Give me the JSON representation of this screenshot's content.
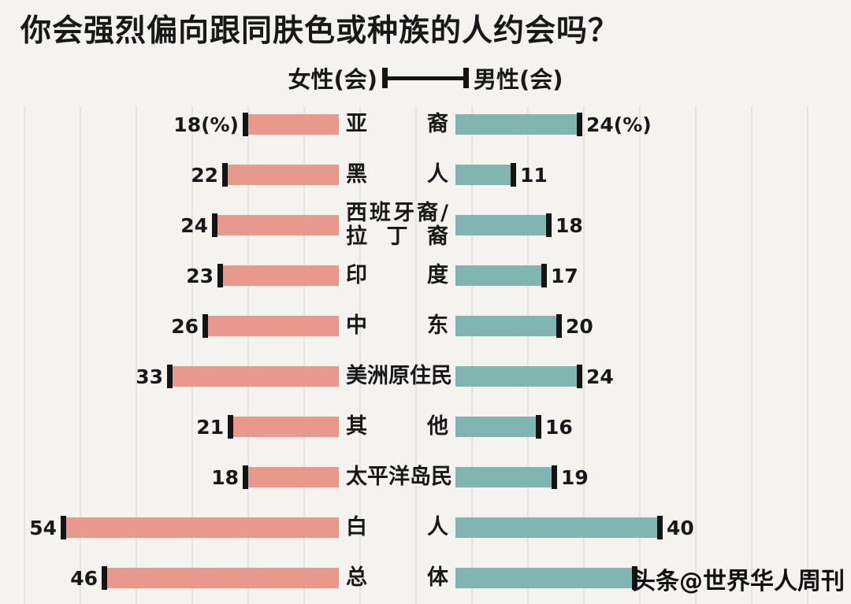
{
  "title": "你会强烈偏向跟同肤色或种族的人约会吗？",
  "legend": {
    "female": "女性(会)",
    "male": "男性(会)"
  },
  "watermark": "头条@世界华人周刊",
  "colors": {
    "female_bar": "#E8998C",
    "male_bar": "#80B5B2",
    "tick": "#141414",
    "background": "#F5F3F0",
    "gridline": "#E6E3DE"
  },
  "chart_data": {
    "type": "bar",
    "orientation": "diverging-horizontal",
    "title": "你会强烈偏向跟同肤色或种族的人约会吗？",
    "unit": "%",
    "xlim": [
      0,
      60
    ],
    "grid": true,
    "legend_position": "top-center",
    "categories": [
      "亚裔",
      "黑人",
      "西班牙裔/拉丁裔",
      "印度",
      "中东",
      "美洲原住民",
      "其他",
      "太平洋岛民",
      "白人",
      "总体"
    ],
    "series": [
      {
        "name": "女性(会)",
        "side": "left",
        "color": "#E8998C",
        "values": [
          18,
          22,
          24,
          23,
          26,
          33,
          21,
          18,
          54,
          46
        ]
      },
      {
        "name": "男性(会)",
        "side": "right",
        "color": "#80B5B2",
        "values": [
          24,
          11,
          18,
          17,
          20,
          24,
          16,
          19,
          40,
          35
        ]
      }
    ]
  },
  "rows": [
    {
      "category_lines": [
        "亚裔"
      ],
      "female": 18,
      "female_label": "18(%)",
      "male": 24,
      "male_label": "24(%)"
    },
    {
      "category_lines": [
        "黑人"
      ],
      "female": 22,
      "female_label": "22",
      "male": 11,
      "male_label": "11"
    },
    {
      "category_lines": [
        "西班牙裔/",
        "拉丁裔"
      ],
      "female": 24,
      "female_label": "24",
      "male": 18,
      "male_label": "18"
    },
    {
      "category_lines": [
        "印度"
      ],
      "female": 23,
      "female_label": "23",
      "male": 17,
      "male_label": "17"
    },
    {
      "category_lines": [
        "中东"
      ],
      "female": 26,
      "female_label": "26",
      "male": 20,
      "male_label": "20"
    },
    {
      "category_lines": [
        "美洲原住民"
      ],
      "female": 33,
      "female_label": "33",
      "male": 24,
      "male_label": "24"
    },
    {
      "category_lines": [
        "其他"
      ],
      "female": 21,
      "female_label": "21",
      "male": 16,
      "male_label": "16"
    },
    {
      "category_lines": [
        "太平洋岛民"
      ],
      "female": 18,
      "female_label": "18",
      "male": 19,
      "male_label": "19"
    },
    {
      "category_lines": [
        "白人"
      ],
      "female": 54,
      "female_label": "54",
      "male": 40,
      "male_label": "40"
    },
    {
      "category_lines": [
        "总体"
      ],
      "female": 46,
      "female_label": "46",
      "male": 35,
      "male_label": ""
    }
  ]
}
